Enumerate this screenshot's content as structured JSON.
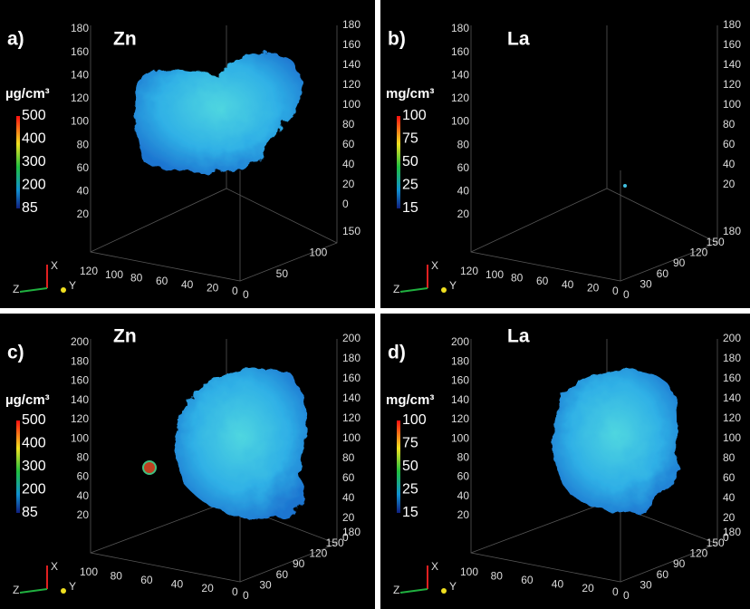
{
  "panels": [
    {
      "label": "a)",
      "element": "Zn",
      "unit": "µg/cm³",
      "colorbar": [
        500,
        400,
        300,
        200,
        85
      ],
      "left_axis": [
        180,
        160,
        140,
        120,
        100,
        80,
        60,
        40,
        20
      ],
      "right_axis": [
        180,
        160,
        140,
        120,
        100,
        80,
        60,
        40,
        20,
        0
      ],
      "bottom_axis": [
        120,
        100,
        80,
        60,
        40,
        20,
        0
      ],
      "depth_axis": [
        0,
        50,
        100,
        150
      ],
      "triad": [
        "X",
        "Y",
        "Z"
      ]
    },
    {
      "label": "b)",
      "element": "La",
      "unit": "mg/cm³",
      "colorbar": [
        100,
        75,
        50,
        25,
        15
      ],
      "left_axis": [
        180,
        160,
        140,
        120,
        100,
        80,
        60,
        40,
        20
      ],
      "right_axis": [
        180,
        160,
        140,
        120,
        100,
        80,
        60,
        40,
        20
      ],
      "bottom_axis": [
        120,
        100,
        80,
        60,
        40,
        20,
        0
      ],
      "depth_axis": [
        0,
        30,
        60,
        90,
        120,
        150,
        180
      ],
      "triad": [
        "X",
        "Y",
        "Z"
      ]
    },
    {
      "label": "c)",
      "element": "Zn",
      "unit": "µg/cm³",
      "colorbar": [
        500,
        400,
        300,
        200,
        85
      ],
      "left_axis": [
        200,
        180,
        160,
        140,
        120,
        100,
        80,
        60,
        40,
        20
      ],
      "right_axis": [
        200,
        180,
        160,
        140,
        120,
        100,
        80,
        60,
        40,
        20,
        0
      ],
      "bottom_axis": [
        100,
        80,
        60,
        40,
        20,
        0
      ],
      "depth_axis": [
        0,
        30,
        60,
        90,
        120,
        150,
        180
      ],
      "triad": [
        "X",
        "Y",
        "Z"
      ]
    },
    {
      "label": "d)",
      "element": "La",
      "unit": "mg/cm³",
      "colorbar": [
        100,
        75,
        50,
        25,
        15
      ],
      "left_axis": [
        200,
        180,
        160,
        140,
        120,
        100,
        80,
        60,
        40,
        20
      ],
      "right_axis": [
        200,
        180,
        160,
        140,
        120,
        100,
        80,
        60,
        40,
        20,
        0
      ],
      "bottom_axis": [
        100,
        80,
        60,
        40,
        20,
        0
      ],
      "depth_axis": [
        0,
        30,
        60,
        90,
        120,
        150,
        180
      ],
      "triad": [
        "X",
        "Y",
        "Z"
      ]
    }
  ]
}
